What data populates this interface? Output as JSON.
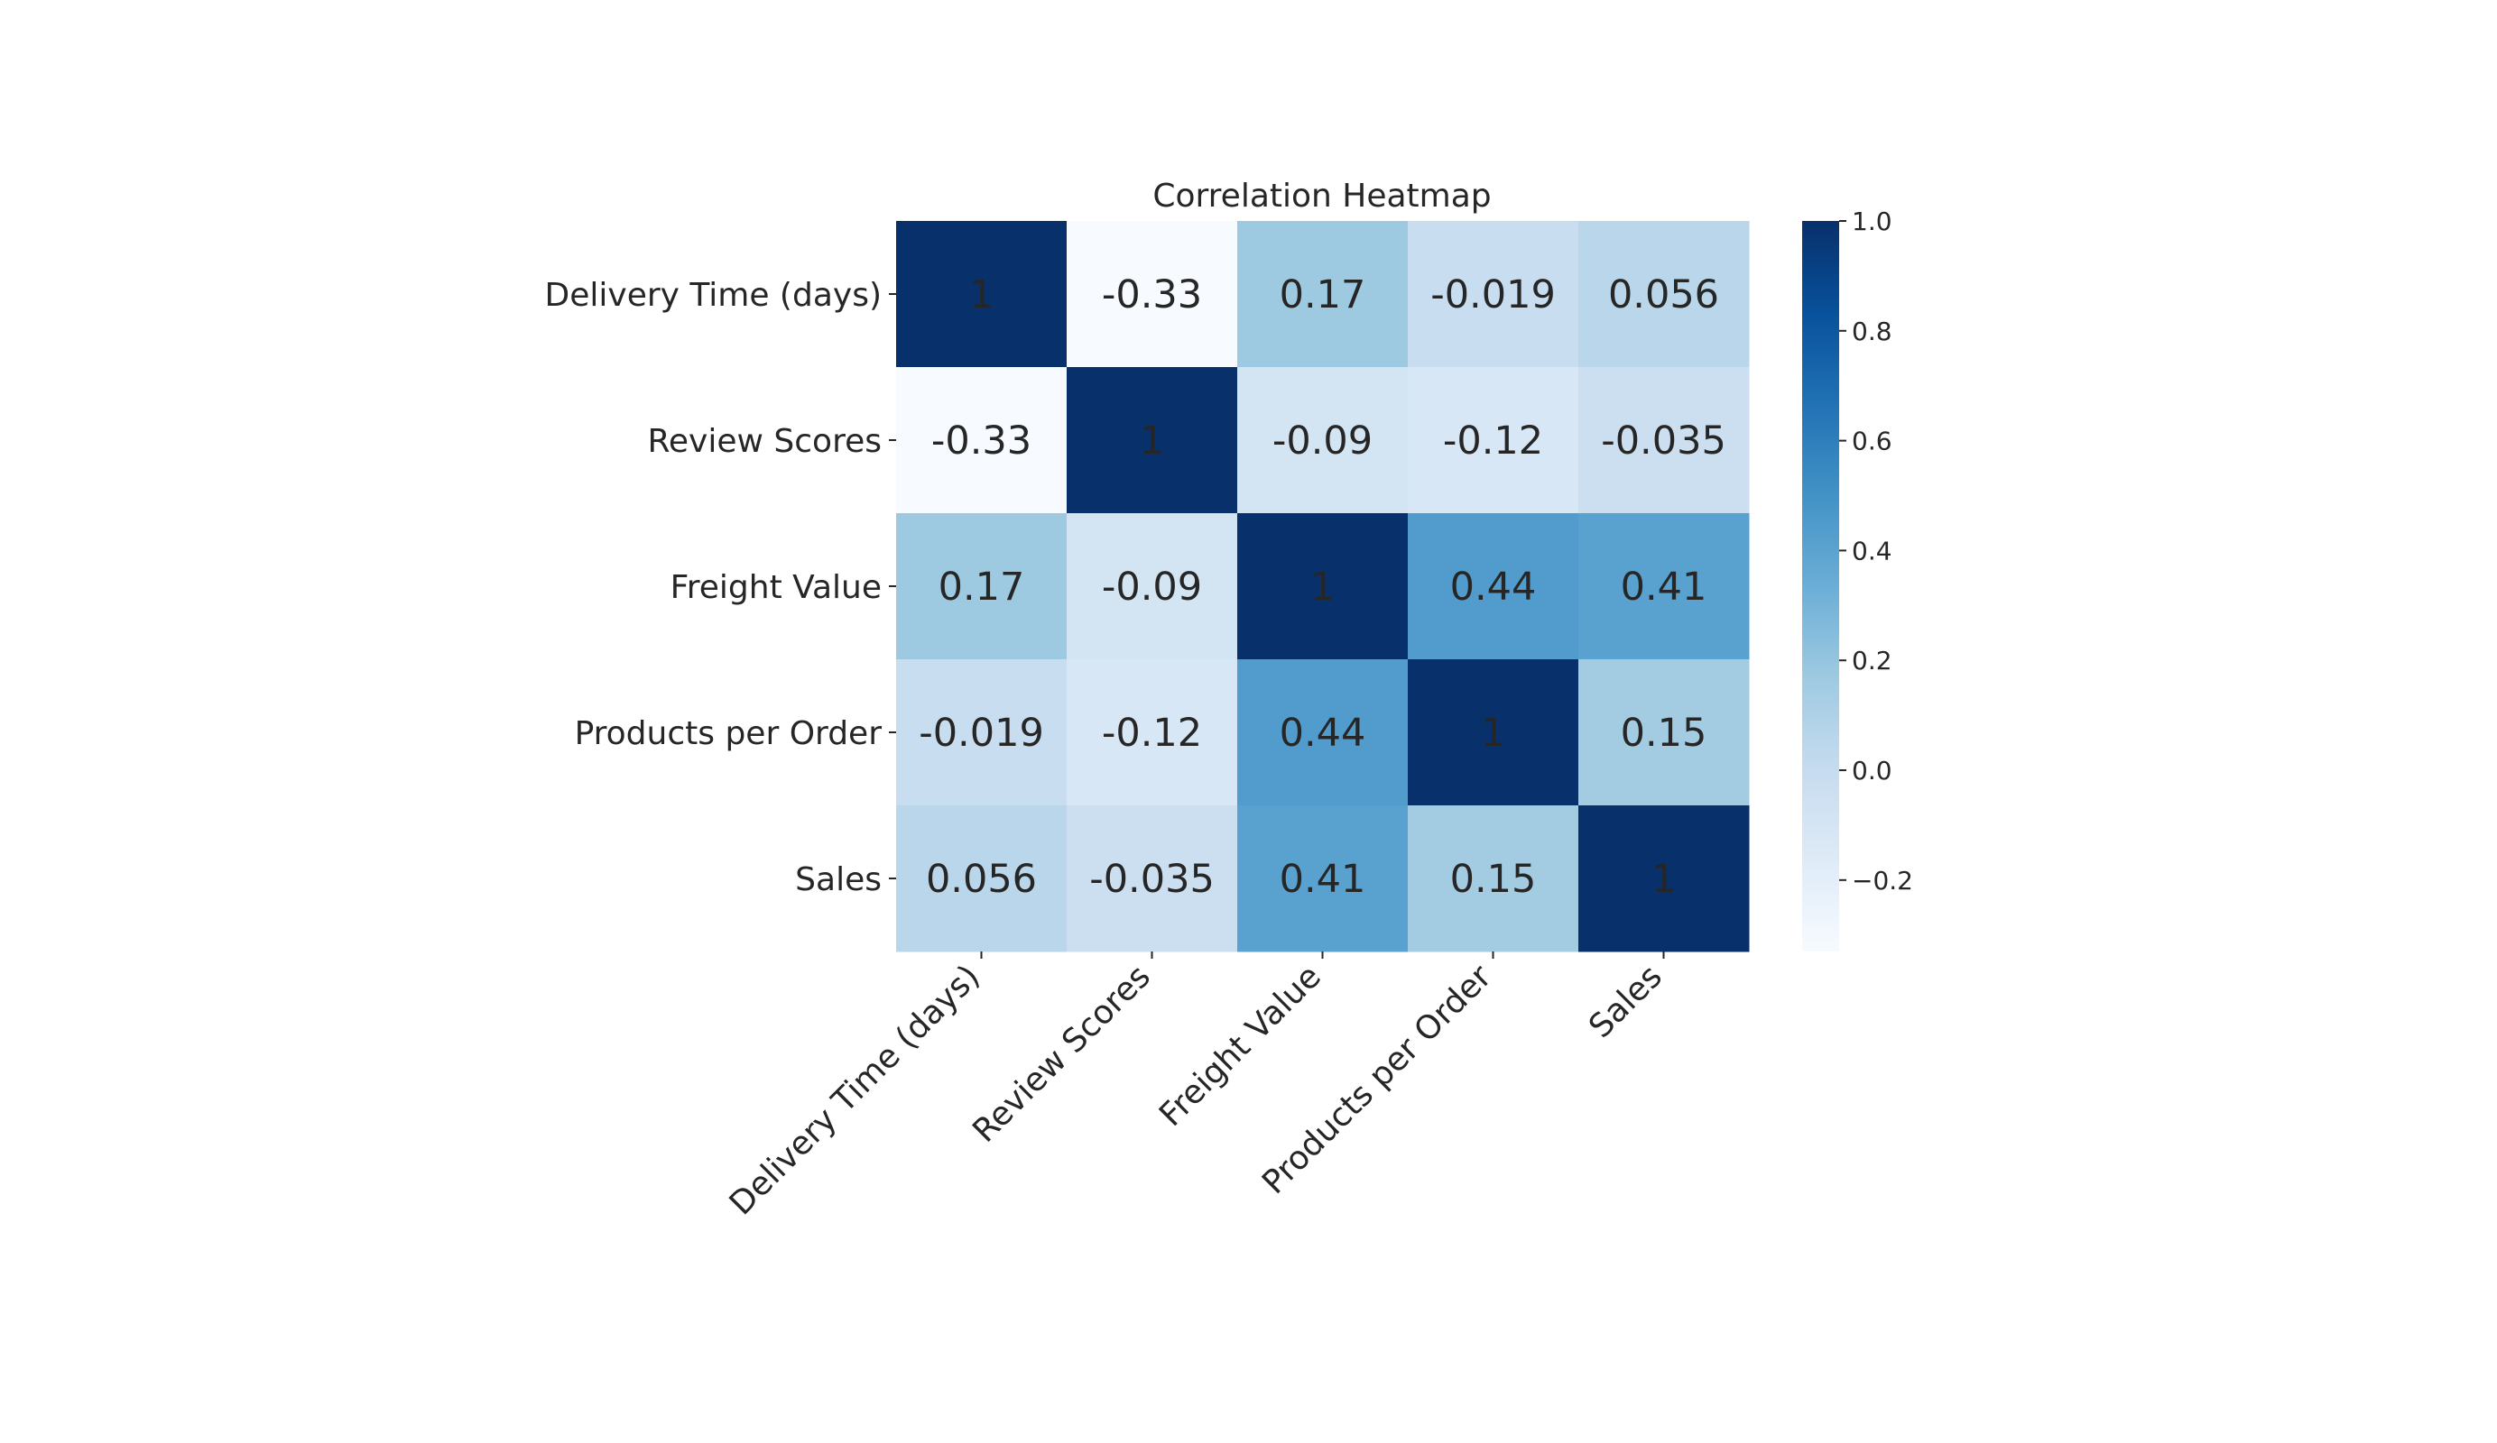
{
  "chart_data": {
    "type": "heatmap",
    "title": "Correlation Heatmap",
    "xlabel": "",
    "ylabel": "",
    "labels": [
      "Delivery Time (days)",
      "Review Scores",
      "Freight Value",
      "Products per Order",
      "Sales"
    ],
    "matrix": [
      [
        1,
        -0.33,
        0.17,
        -0.019,
        0.056
      ],
      [
        -0.33,
        1,
        -0.09,
        -0.12,
        -0.035
      ],
      [
        0.17,
        -0.09,
        1,
        0.44,
        0.41
      ],
      [
        -0.019,
        -0.12,
        0.44,
        1,
        0.15
      ],
      [
        0.056,
        -0.035,
        0.41,
        0.15,
        1
      ]
    ],
    "annotations": [
      [
        "1",
        "-0.33",
        "0.17",
        "-0.019",
        "0.056"
      ],
      [
        "-0.33",
        "1",
        "-0.09",
        "-0.12",
        "-0.035"
      ],
      [
        "0.17",
        "-0.09",
        "1",
        "0.44",
        "0.41"
      ],
      [
        "-0.019",
        "-0.12",
        "0.44",
        "1",
        "0.15"
      ],
      [
        "0.056",
        "-0.035",
        "0.41",
        "0.15",
        "1"
      ]
    ],
    "colormap": "Blues",
    "color_range": [
      -0.33,
      1.0
    ],
    "colorbar_ticks": [
      "1.0",
      "0.8",
      "0.6",
      "0.4",
      "0.2",
      "0.0",
      "−0.2"
    ],
    "colorbar_tick_values": [
      1.0,
      0.8,
      0.6,
      0.4,
      0.2,
      0.0,
      -0.2
    ]
  }
}
